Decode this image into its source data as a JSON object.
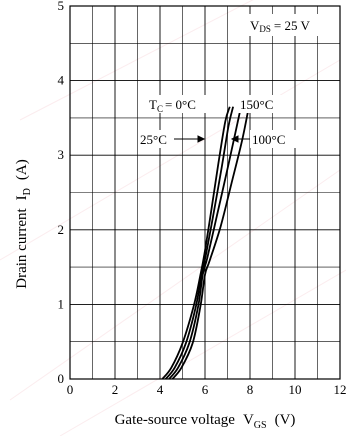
{
  "chart_data": {
    "type": "line",
    "xlabel": "Gate-source voltage",
    "xlabel_symbol": "V",
    "xlabel_sub": "GS",
    "xlabel_unit": "(V)",
    "ylabel": "Drain current",
    "ylabel_symbol": "I",
    "ylabel_sub": "D",
    "ylabel_unit": "(A)",
    "xlim": [
      0,
      12
    ],
    "ylim": [
      0,
      5
    ],
    "x_ticks": [
      0,
      2,
      4,
      6,
      8,
      10,
      12
    ],
    "y_ticks": [
      0,
      1,
      2,
      3,
      4,
      5
    ],
    "grid": true,
    "annotation": {
      "prefix": "V",
      "sub": "DS",
      "value": "= 25 V"
    },
    "series": [
      {
        "name": "0°C",
        "label_prefix": "T",
        "label_sub": "C",
        "label_value": "= 0°C",
        "x": [
          4.1,
          4.5,
          5.0,
          5.5,
          5.8,
          6.0,
          6.3,
          6.6,
          6.9,
          7.1
        ],
        "y": [
          0.0,
          0.15,
          0.48,
          0.98,
          1.4,
          1.72,
          2.3,
          2.9,
          3.45,
          3.65
        ]
      },
      {
        "name": "25°C",
        "label_value": "25°C",
        "x": [
          4.25,
          4.65,
          5.15,
          5.6,
          5.85,
          6.05,
          6.4,
          6.75,
          7.05,
          7.25
        ],
        "y": [
          0.0,
          0.15,
          0.48,
          0.98,
          1.4,
          1.68,
          2.25,
          2.85,
          3.4,
          3.65
        ]
      },
      {
        "name": "100°C",
        "label_value": "100°C",
        "x": [
          4.4,
          4.8,
          5.3,
          5.7,
          5.9,
          6.1,
          6.5,
          6.95,
          7.35,
          7.6
        ],
        "y": [
          0.0,
          0.15,
          0.48,
          0.98,
          1.4,
          1.62,
          2.15,
          2.75,
          3.3,
          3.65
        ]
      },
      {
        "name": "150°C",
        "label_value": "150°C",
        "x": [
          4.55,
          4.95,
          5.45,
          5.8,
          6.0,
          6.2,
          6.7,
          7.2,
          7.65,
          7.95
        ],
        "y": [
          0.0,
          0.15,
          0.48,
          0.98,
          1.4,
          1.58,
          2.05,
          2.65,
          3.2,
          3.65
        ]
      }
    ]
  }
}
